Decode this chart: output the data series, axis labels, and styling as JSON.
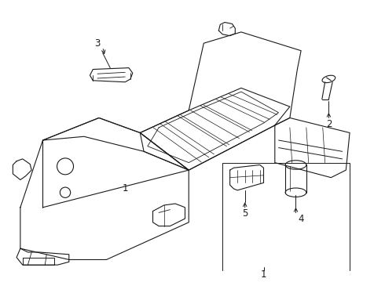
{
  "background_color": "#ffffff",
  "line_color": "#1a1a1a",
  "line_width": 0.8,
  "label_fontsize": 8.5,
  "figsize": [
    4.9,
    3.6
  ],
  "dpi": 100
}
